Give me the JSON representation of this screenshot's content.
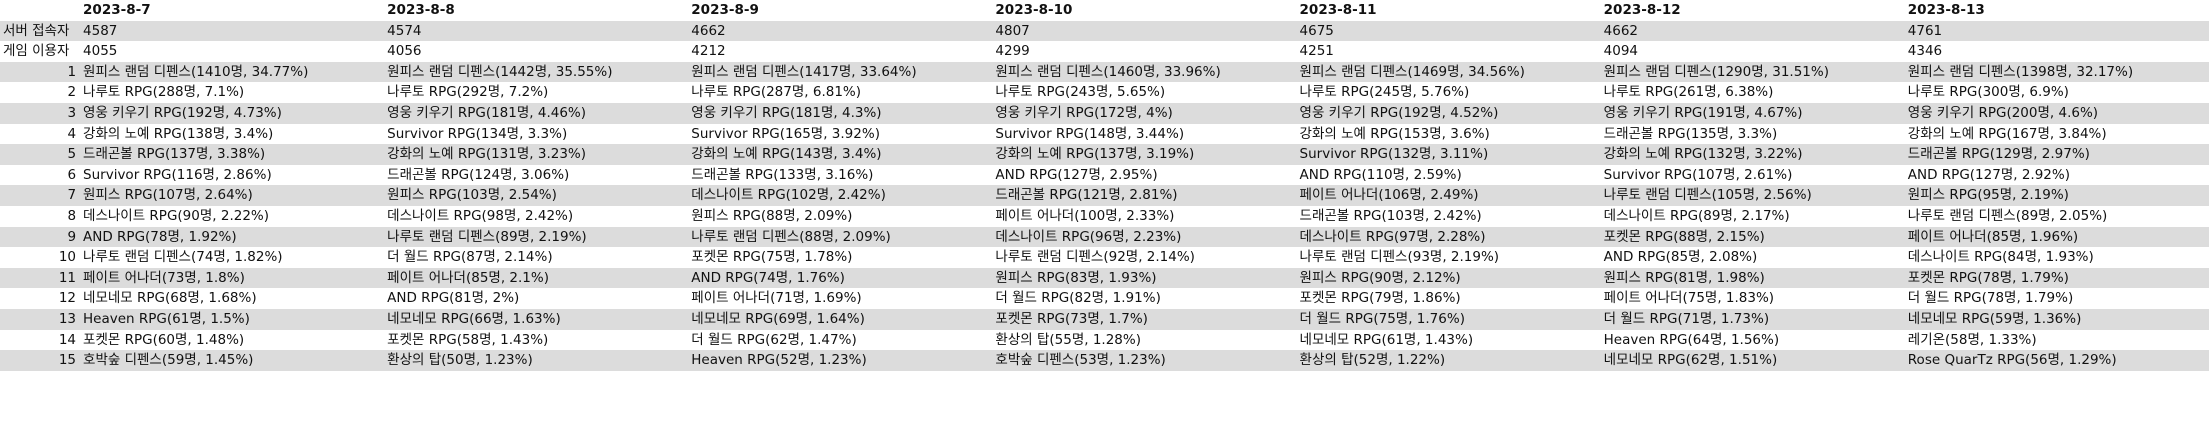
{
  "dates": [
    "2023-8-7",
    "2023-8-8",
    "2023-8-9",
    "2023-8-10",
    "2023-8-11",
    "2023-8-12",
    "2023-8-13"
  ],
  "summary": [
    {
      "label": "서버 접속자",
      "values": [
        "4587",
        "4574",
        "4662",
        "4807",
        "4675",
        "4662",
        "4761"
      ]
    },
    {
      "label": "게임 이용자",
      "values": [
        "4055",
        "4056",
        "4212",
        "4299",
        "4251",
        "4094",
        "4346"
      ]
    }
  ],
  "ranks": [
    {
      "rank": "1",
      "cells": [
        "원피스 랜덤 디펜스(1410명, 34.77%)",
        "원피스 랜덤 디펜스(1442명, 35.55%)",
        "원피스 랜덤 디펜스(1417명, 33.64%)",
        "원피스 랜덤 디펜스(1460명, 33.96%)",
        "원피스 랜덤 디펜스(1469명, 34.56%)",
        "원피스 랜덤 디펜스(1290명, 31.51%)",
        "원피스 랜덤 디펜스(1398명, 32.17%)"
      ]
    },
    {
      "rank": "2",
      "cells": [
        "나루토 RPG(288명, 7.1%)",
        "나루토 RPG(292명, 7.2%)",
        "나루토 RPG(287명, 6.81%)",
        "나루토 RPG(243명, 5.65%)",
        "나루토 RPG(245명, 5.76%)",
        "나루토 RPG(261명, 6.38%)",
        "나루토 RPG(300명, 6.9%)"
      ]
    },
    {
      "rank": "3",
      "cells": [
        "영웅 키우기 RPG(192명, 4.73%)",
        "영웅 키우기 RPG(181명, 4.46%)",
        "영웅 키우기 RPG(181명, 4.3%)",
        "영웅 키우기 RPG(172명, 4%)",
        "영웅 키우기 RPG(192명, 4.52%)",
        "영웅 키우기 RPG(191명, 4.67%)",
        "영웅 키우기 RPG(200명, 4.6%)"
      ]
    },
    {
      "rank": "4",
      "cells": [
        "강화의 노예 RPG(138명, 3.4%)",
        "Survivor RPG(134명, 3.3%)",
        "Survivor RPG(165명, 3.92%)",
        "Survivor RPG(148명, 3.44%)",
        "강화의 노예 RPG(153명, 3.6%)",
        "드래곤볼 RPG(135명, 3.3%)",
        "강화의 노예 RPG(167명, 3.84%)"
      ]
    },
    {
      "rank": "5",
      "cells": [
        "드래곤볼 RPG(137명, 3.38%)",
        "강화의 노예 RPG(131명, 3.23%)",
        "강화의 노예 RPG(143명, 3.4%)",
        "강화의 노예 RPG(137명, 3.19%)",
        "Survivor RPG(132명, 3.11%)",
        "강화의 노예 RPG(132명, 3.22%)",
        "드래곤볼 RPG(129명, 2.97%)"
      ]
    },
    {
      "rank": "6",
      "cells": [
        "Survivor RPG(116명, 2.86%)",
        "드래곤볼 RPG(124명, 3.06%)",
        "드래곤볼 RPG(133명, 3.16%)",
        "AND RPG(127명, 2.95%)",
        "AND RPG(110명, 2.59%)",
        "Survivor RPG(107명, 2.61%)",
        "AND RPG(127명, 2.92%)"
      ]
    },
    {
      "rank": "7",
      "cells": [
        "원피스 RPG(107명, 2.64%)",
        "원피스 RPG(103명, 2.54%)",
        "데스나이트 RPG(102명, 2.42%)",
        "드래곤볼 RPG(121명, 2.81%)",
        "페이트 어나더(106명, 2.49%)",
        "나루토 랜덤 디펜스(105명, 2.56%)",
        "원피스 RPG(95명, 2.19%)"
      ]
    },
    {
      "rank": "8",
      "cells": [
        "데스나이트 RPG(90명, 2.22%)",
        "데스나이트 RPG(98명, 2.42%)",
        "원피스 RPG(88명, 2.09%)",
        "페이트 어나더(100명, 2.33%)",
        "드래곤볼 RPG(103명, 2.42%)",
        "데스나이트 RPG(89명, 2.17%)",
        "나루토 랜덤 디펜스(89명, 2.05%)"
      ]
    },
    {
      "rank": "9",
      "cells": [
        "AND RPG(78명, 1.92%)",
        "나루토 랜덤 디펜스(89명, 2.19%)",
        "나루토 랜덤 디펜스(88명, 2.09%)",
        "데스나이트 RPG(96명, 2.23%)",
        "데스나이트 RPG(97명, 2.28%)",
        "포켓몬 RPG(88명, 2.15%)",
        "페이트 어나더(85명, 1.96%)"
      ]
    },
    {
      "rank": "10",
      "cells": [
        "나루토 랜덤 디펜스(74명, 1.82%)",
        "더 월드 RPG(87명, 2.14%)",
        "포켓몬 RPG(75명, 1.78%)",
        "나루토 랜덤 디펜스(92명, 2.14%)",
        "나루토 랜덤 디펜스(93명, 2.19%)",
        "AND RPG(85명, 2.08%)",
        "데스나이트 RPG(84명, 1.93%)"
      ]
    },
    {
      "rank": "11",
      "cells": [
        "페이트 어나더(73명, 1.8%)",
        "페이트 어나더(85명, 2.1%)",
        "AND RPG(74명, 1.76%)",
        "원피스 RPG(83명, 1.93%)",
        "원피스 RPG(90명, 2.12%)",
        "원피스 RPG(81명, 1.98%)",
        "포켓몬 RPG(78명, 1.79%)"
      ]
    },
    {
      "rank": "12",
      "cells": [
        "네모네모 RPG(68명, 1.68%)",
        "AND RPG(81명, 2%)",
        "페이트 어나더(71명, 1.69%)",
        "더 월드 RPG(82명, 1.91%)",
        "포켓몬 RPG(79명, 1.86%)",
        "페이트 어나더(75명, 1.83%)",
        "더 월드 RPG(78명, 1.79%)"
      ]
    },
    {
      "rank": "13",
      "cells": [
        "Heaven RPG(61명, 1.5%)",
        "네모네모 RPG(66명, 1.63%)",
        "네모네모 RPG(69명, 1.64%)",
        "포켓몬 RPG(73명, 1.7%)",
        "더 월드 RPG(75명, 1.76%)",
        "더 월드 RPG(71명, 1.73%)",
        "네모네모 RPG(59명, 1.36%)"
      ]
    },
    {
      "rank": "14",
      "cells": [
        "포켓몬 RPG(60명, 1.48%)",
        "포켓몬 RPG(58명, 1.43%)",
        "더 월드 RPG(62명, 1.47%)",
        "환상의 탑(55명, 1.28%)",
        "네모네모 RPG(61명, 1.43%)",
        "Heaven RPG(64명, 1.56%)",
        "레기온(58명, 1.33%)"
      ]
    },
    {
      "rank": "15",
      "cells": [
        "호박숲 디펜스(59명, 1.45%)",
        "환상의 탑(50명, 1.23%)",
        "Heaven RPG(52명, 1.23%)",
        "호박숲 디펜스(53명, 1.23%)",
        "환상의 탑(52명, 1.22%)",
        "네모네모 RPG(62명, 1.51%)",
        "Rose QuarTz RPG(56명, 1.29%)"
      ]
    }
  ]
}
